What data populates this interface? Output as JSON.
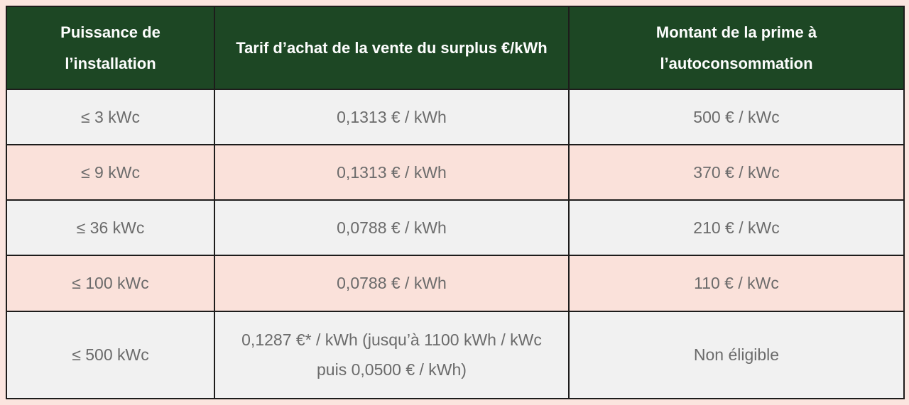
{
  "table": {
    "columns": [
      {
        "label": "Puissance de l’installation"
      },
      {
        "label": "Tarif d’achat de la vente du surplus €/kWh"
      },
      {
        "label": "Montant de la prime à l’autoconsommation"
      }
    ],
    "rows": [
      [
        "≤ 3 kWc",
        "0,1313 € / kWh",
        "500 € / kWc"
      ],
      [
        "≤ 9 kWc",
        "0,1313 € / kWh",
        "370 € / kWc"
      ],
      [
        "≤ 36 kWc",
        "0,0788 € / kWh",
        "210 € / kWc"
      ],
      [
        "≤ 100 kWc",
        "0,0788 € / kWh",
        "110 € / kWc"
      ],
      [
        "≤ 500 kWc",
        "0,1287 €* / kWh (jusqu’à 1100 kWh / kWc puis 0,0500 € / kWh)",
        "Non éligible"
      ]
    ]
  },
  "colors": {
    "header_bg": "#1d4724",
    "header_text": "#fdfdfd",
    "row_grey_bg": "#f1f1f1",
    "row_pink_bg": "#fae1da",
    "outer_bg": "#fbe5df",
    "border": "#1d1c1b",
    "body_text": "#6b6b6b"
  }
}
